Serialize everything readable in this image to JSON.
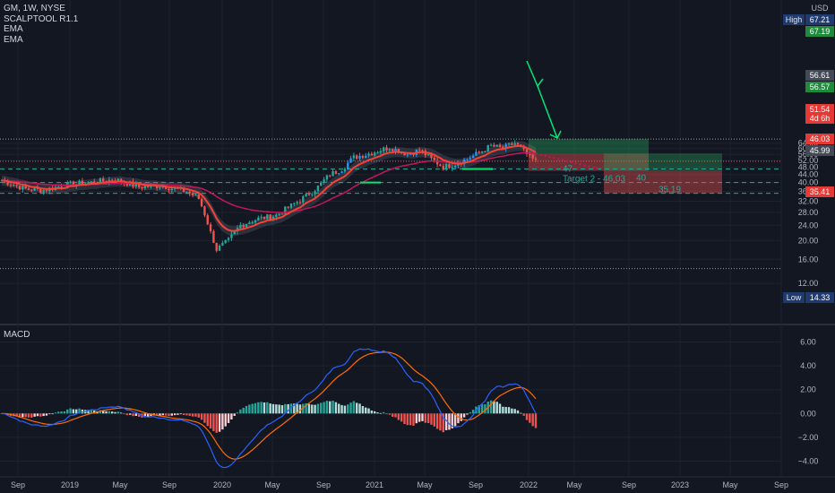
{
  "header": {
    "symbol_line": "GM, 1W, NYSE",
    "indicators": [
      "SCALPTOOL R1.1",
      "EMA",
      "EMA"
    ],
    "currency": "USD"
  },
  "chart_data": [
    {
      "type": "candlestick",
      "title": "GM, 1W, NYSE",
      "x_ticks": [
        "Sep",
        "2019",
        "May",
        "Sep",
        "2020",
        "May",
        "Sep",
        "2021",
        "May",
        "Sep",
        "2022",
        "May",
        "Sep",
        "2023",
        "May",
        "Sep"
      ],
      "y_ticks": [
        12.0,
        16.0,
        20.0,
        24.0,
        28.0,
        32.0,
        36.0,
        40.0,
        44.0,
        48.0,
        52.0,
        56.0,
        60.0,
        64.0
      ],
      "y_scale": "log",
      "ylim": [
        11.0,
        72.0
      ],
      "grid": true,
      "price_labels": [
        {
          "label": "High",
          "value": "67.21",
          "color": "#1e3a6e"
        },
        {
          "label": "",
          "value": "67.19",
          "color": "#1e8a3c"
        },
        {
          "label": "",
          "value": "56.61",
          "color": "#444a55"
        },
        {
          "label": "",
          "value": "56.57",
          "color": "#1e8a3c"
        },
        {
          "label": "",
          "value": "51.54",
          "sub": "4d 6h",
          "color": "#e53935"
        },
        {
          "label": "",
          "value": "46.03",
          "color": "#e53935"
        },
        {
          "label": "",
          "value": "45.99",
          "color": "#444a55"
        },
        {
          "label": "",
          "value": "35.41",
          "color": "#e53935"
        },
        {
          "label": "Low",
          "value": "14.33",
          "color": "#1e3a6e"
        }
      ],
      "horizontal_levels": [
        67.21,
        47.0,
        40.0,
        35.19,
        14.33
      ],
      "annotations": [
        {
          "text": "47",
          "color": "#26a69a"
        },
        {
          "text": "Target 2 - 46.03",
          "color": "#26a69a"
        },
        {
          "text": "40",
          "color": "#26a69a"
        },
        {
          "text": "35.19",
          "color": "#26a69a"
        }
      ],
      "colors": {
        "up": "#26a69a",
        "up_alt": "#2196f3",
        "down": "#ef5350",
        "ema_fast": "#f44336",
        "ema_slow": "#c2185b",
        "band": "#8a8f99"
      }
    },
    {
      "type": "macd",
      "title": "MACD",
      "y_ticks": [
        6.0,
        4.0,
        2.0,
        0.0,
        -2.0,
        -4.0
      ],
      "ylim": [
        -4.4,
        6.4
      ],
      "series": [
        {
          "name": "MACD",
          "color": "#2962ff"
        },
        {
          "name": "Signal",
          "color": "#ff6d00"
        }
      ]
    }
  ]
}
